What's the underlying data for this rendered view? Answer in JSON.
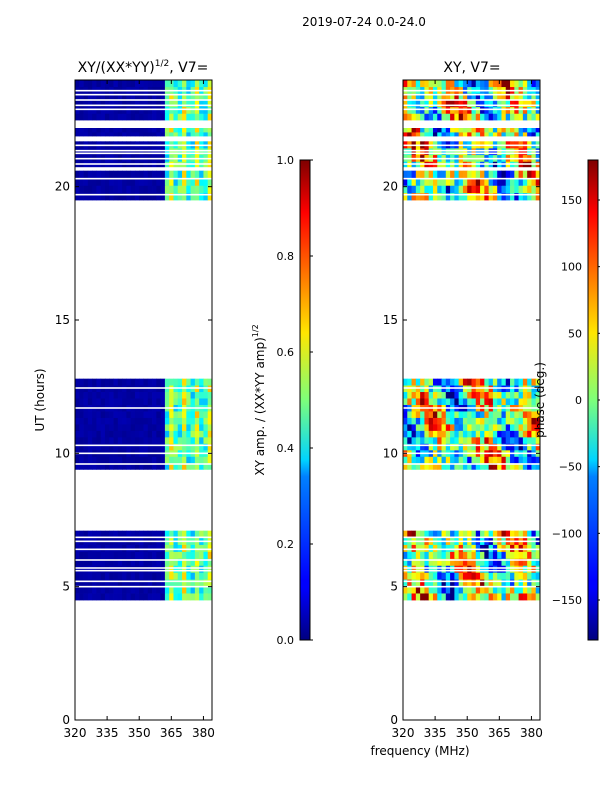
{
  "figure": {
    "suptitle": "2019-07-24 0.0-24.0",
    "xlabel_shared": "frequency (MHz)"
  },
  "chart_data": [
    {
      "type": "heatmap",
      "title": "XY/(XX*YY)^{1/2}, V7=",
      "title_main": "XY/(XX*YY)",
      "title_sup": "1/2",
      "title_tail": ", V7=",
      "xlabel": "",
      "ylabel": "UT (hours)",
      "xlim": [
        320,
        384
      ],
      "ylim": [
        0,
        24
      ],
      "xticks": [
        320,
        335,
        350,
        365,
        380
      ],
      "yticks": [
        0,
        5,
        10,
        15,
        20
      ],
      "colormap": "jet",
      "colorbar": {
        "label_main": "XY amp. / (XX*YY amp)",
        "label_sup": "1/2",
        "range": [
          0.0,
          1.0
        ],
        "ticks": [
          "0.0",
          "0.2",
          "0.4",
          "0.6",
          "0.8",
          "1.0"
        ]
      },
      "data_time_ranges_hours": [
        [
          4.5,
          7.1
        ],
        [
          9.4,
          12.8
        ],
        [
          19.5,
          20.6
        ],
        [
          20.7,
          21.7
        ],
        [
          21.9,
          22.2
        ],
        [
          22.5,
          24.0
        ]
      ],
      "gap_lines_hours": [
        5.0,
        5.2,
        5.6,
        5.7,
        6.0,
        6.4,
        6.7,
        6.85,
        9.6,
        10.0,
        10.3,
        11.7,
        12.45,
        19.7,
        20.3,
        20.7,
        20.85,
        21.05,
        21.25,
        21.35,
        21.55,
        22.9,
        23.05,
        23.25,
        23.45,
        23.6
      ],
      "bright_band_MHz": [
        362,
        384
      ],
      "baseline_value": 0.02
    },
    {
      "type": "heatmap",
      "title": "XY, V7=",
      "xlabel": "frequency (MHz)",
      "ylabel": "",
      "xlim": [
        320,
        384
      ],
      "ylim": [
        0,
        24
      ],
      "xticks": [
        320,
        335,
        350,
        365,
        380
      ],
      "yticks": [
        0,
        5,
        10,
        15,
        20
      ],
      "colormap": "jet",
      "colorbar": {
        "label": "phase (deg.)",
        "range": [
          -180,
          180
        ],
        "ticks": [
          "−150",
          "−100",
          "−50",
          "0",
          "50",
          "100",
          "150"
        ],
        "tick_values": [
          -150,
          -100,
          -50,
          0,
          50,
          100,
          150
        ]
      },
      "data_time_ranges_hours": [
        [
          4.5,
          7.1
        ],
        [
          9.4,
          12.8
        ],
        [
          19.5,
          20.6
        ],
        [
          20.7,
          21.7
        ],
        [
          21.9,
          22.2
        ],
        [
          22.5,
          24.0
        ]
      ],
      "gap_lines_hours": [
        5.0,
        5.2,
        5.6,
        5.7,
        6.0,
        6.4,
        6.7,
        6.85,
        9.6,
        10.0,
        10.3,
        11.7,
        12.45,
        19.7,
        20.3,
        20.7,
        20.85,
        21.05,
        21.25,
        21.35,
        21.55,
        22.9,
        23.05,
        23.25,
        23.45,
        23.6
      ]
    }
  ]
}
